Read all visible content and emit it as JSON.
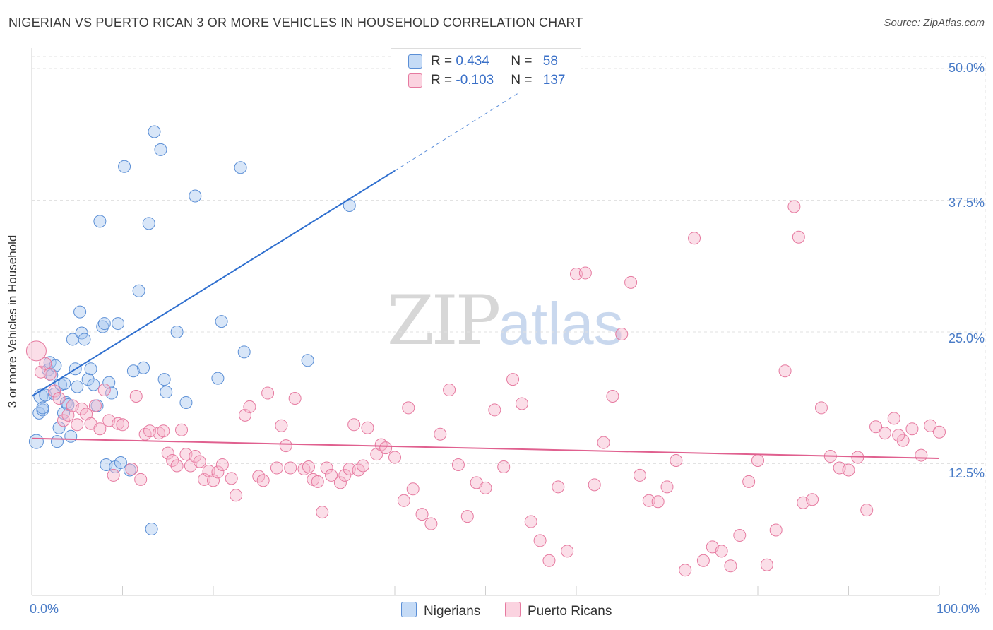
{
  "title": "NIGERIAN VS PUERTO RICAN 3 OR MORE VEHICLES IN HOUSEHOLD CORRELATION CHART",
  "source": "Source: ZipAtlas.com",
  "watermark": {
    "zip": "ZIP",
    "atlas": "atlas"
  },
  "legend": {
    "rows": [
      {
        "r_label": "R = ",
        "r_value": "0.434",
        "n_label": "N = ",
        "n_value": "58",
        "color": "#a9c8ef"
      },
      {
        "r_label": "R = ",
        "r_value": "-0.103",
        "n_label": "N = ",
        "n_value": "137",
        "color": "#f7b6cc"
      }
    ]
  },
  "bottom_legend": [
    {
      "label": "Nigerians",
      "color": "#a9c8ef"
    },
    {
      "label": "Puerto Ricans",
      "color": "#f7b6cc"
    }
  ],
  "chart_data": {
    "type": "scatter",
    "title": "NIGERIAN VS PUERTO RICAN 3 OR MORE VEHICLES IN HOUSEHOLD CORRELATION CHART",
    "xlabel": "",
    "ylabel": "3 or more Vehicles in Household",
    "xlim": [
      0,
      100
    ],
    "ylim": [
      0,
      50.0
    ],
    "x_tick_labels": [
      "0.0%",
      "100.0%"
    ],
    "y_ticks": [
      12.5,
      25.0,
      37.5,
      50.0
    ],
    "y_tick_labels": [
      "12.5%",
      "25.0%",
      "37.5%",
      "50.0%"
    ],
    "grid": true,
    "series": [
      {
        "name": "Nigerians",
        "color": "#a9c8ef",
        "edge": "#5b8fd6",
        "trend": {
          "x0": 0,
          "y0": 18.9,
          "x1": 40,
          "y1": 40.3,
          "dash_to_x": 57,
          "dash_to_y": 49.5,
          "color": "#2f6fcf"
        },
        "points": [
          [
            0.5,
            14.6
          ],
          [
            0.8,
            17.3
          ],
          [
            1.0,
            18.9
          ],
          [
            1.2,
            17.6
          ],
          [
            1.5,
            19.0
          ],
          [
            1.8,
            21.4
          ],
          [
            2.0,
            22.1
          ],
          [
            2.2,
            20.9
          ],
          [
            2.5,
            19.1
          ],
          [
            2.8,
            14.6
          ],
          [
            3.0,
            15.9
          ],
          [
            3.2,
            20.0
          ],
          [
            3.5,
            17.3
          ],
          [
            3.8,
            18.3
          ],
          [
            4.0,
            18.1
          ],
          [
            4.3,
            15.1
          ],
          [
            4.5,
            24.3
          ],
          [
            4.8,
            21.5
          ],
          [
            5.0,
            19.8
          ],
          [
            5.3,
            26.9
          ],
          [
            5.5,
            24.9
          ],
          [
            5.8,
            24.3
          ],
          [
            6.2,
            20.5
          ],
          [
            6.5,
            21.5
          ],
          [
            6.8,
            20.0
          ],
          [
            7.2,
            18.0
          ],
          [
            7.5,
            35.5
          ],
          [
            7.8,
            25.5
          ],
          [
            8.0,
            25.8
          ],
          [
            8.2,
            12.4
          ],
          [
            8.5,
            20.2
          ],
          [
            8.8,
            19.2
          ],
          [
            9.2,
            12.2
          ],
          [
            9.5,
            25.8
          ],
          [
            9.8,
            12.6
          ],
          [
            10.2,
            40.7
          ],
          [
            10.8,
            11.9
          ],
          [
            11.2,
            21.3
          ],
          [
            11.8,
            28.9
          ],
          [
            12.3,
            21.6
          ],
          [
            12.9,
            35.3
          ],
          [
            13.2,
            6.3
          ],
          [
            13.5,
            44.0
          ],
          [
            14.2,
            42.3
          ],
          [
            14.6,
            20.5
          ],
          [
            14.8,
            19.3
          ],
          [
            16.0,
            25.0
          ],
          [
            17.0,
            18.3
          ],
          [
            18.0,
            37.9
          ],
          [
            20.5,
            20.6
          ],
          [
            20.9,
            26.0
          ],
          [
            23.0,
            40.6
          ],
          [
            23.4,
            23.1
          ],
          [
            30.4,
            22.3
          ],
          [
            35.0,
            37.0
          ],
          [
            1.2,
            17.8
          ],
          [
            2.6,
            21.8
          ],
          [
            3.6,
            20.1
          ]
        ]
      },
      {
        "name": "Puerto Ricans",
        "color": "#f7b6cc",
        "edge": "#e67aa0",
        "trend": {
          "x0": 0,
          "y0": 14.9,
          "x1": 100,
          "y1": 13.0,
          "color": "#e0608f"
        },
        "points": [
          [
            0.5,
            23.2
          ],
          [
            1.0,
            21.2
          ],
          [
            1.5,
            22.0
          ],
          [
            2.0,
            21.0
          ],
          [
            2.5,
            19.4
          ],
          [
            3.0,
            18.7
          ],
          [
            3.5,
            16.6
          ],
          [
            4.0,
            17.1
          ],
          [
            4.5,
            18.0
          ],
          [
            5.0,
            16.2
          ],
          [
            5.5,
            17.7
          ],
          [
            6.0,
            17.2
          ],
          [
            6.5,
            16.3
          ],
          [
            7.0,
            18.0
          ],
          [
            7.5,
            15.8
          ],
          [
            8.0,
            19.5
          ],
          [
            8.5,
            16.6
          ],
          [
            9.0,
            11.4
          ],
          [
            9.5,
            16.3
          ],
          [
            10.0,
            16.2
          ],
          [
            11.0,
            12.0
          ],
          [
            11.5,
            18.9
          ],
          [
            12.0,
            11.0
          ],
          [
            12.5,
            15.3
          ],
          [
            13.0,
            15.6
          ],
          [
            14.0,
            15.4
          ],
          [
            14.5,
            15.6
          ],
          [
            15.0,
            13.5
          ],
          [
            15.5,
            12.8
          ],
          [
            16.0,
            12.3
          ],
          [
            16.5,
            15.7
          ],
          [
            17.0,
            13.4
          ],
          [
            17.5,
            12.3
          ],
          [
            18.0,
            13.2
          ],
          [
            18.5,
            12.7
          ],
          [
            19.0,
            11.0
          ],
          [
            19.5,
            11.8
          ],
          [
            20.0,
            10.9
          ],
          [
            20.5,
            11.7
          ],
          [
            21.0,
            12.4
          ],
          [
            22.0,
            11.1
          ],
          [
            22.5,
            9.5
          ],
          [
            23.5,
            17.1
          ],
          [
            24.0,
            17.9
          ],
          [
            25.0,
            11.3
          ],
          [
            25.5,
            10.9
          ],
          [
            26.0,
            19.2
          ],
          [
            27.0,
            12.1
          ],
          [
            27.5,
            16.1
          ],
          [
            28.0,
            14.2
          ],
          [
            28.5,
            12.1
          ],
          [
            29.0,
            18.7
          ],
          [
            30.0,
            12.0
          ],
          [
            30.5,
            12.2
          ],
          [
            31.0,
            11.0
          ],
          [
            31.5,
            10.8
          ],
          [
            32.0,
            7.9
          ],
          [
            32.5,
            12.1
          ],
          [
            33.0,
            11.4
          ],
          [
            34.0,
            10.7
          ],
          [
            34.5,
            11.4
          ],
          [
            35.0,
            12.0
          ],
          [
            35.5,
            16.2
          ],
          [
            36.0,
            11.9
          ],
          [
            36.5,
            12.3
          ],
          [
            37.0,
            15.9
          ],
          [
            38.0,
            13.4
          ],
          [
            38.5,
            14.3
          ],
          [
            39.0,
            14.0
          ],
          [
            40.0,
            13.1
          ],
          [
            41.0,
            9.0
          ],
          [
            41.5,
            17.8
          ],
          [
            42.0,
            10.1
          ],
          [
            43.0,
            7.7
          ],
          [
            44.0,
            6.8
          ],
          [
            45.0,
            15.3
          ],
          [
            46.0,
            19.5
          ],
          [
            47.0,
            12.4
          ],
          [
            48.0,
            7.5
          ],
          [
            49.0,
            10.7
          ],
          [
            50.0,
            10.2
          ],
          [
            51.0,
            17.6
          ],
          [
            52.0,
            12.2
          ],
          [
            53.0,
            20.5
          ],
          [
            54.0,
            18.2
          ],
          [
            55.0,
            7.0
          ],
          [
            56.0,
            5.2
          ],
          [
            57.0,
            3.3
          ],
          [
            58.0,
            10.3
          ],
          [
            59.0,
            4.2
          ],
          [
            60.0,
            30.5
          ],
          [
            61.0,
            30.6
          ],
          [
            62.0,
            10.5
          ],
          [
            63.0,
            14.5
          ],
          [
            64.0,
            18.9
          ],
          [
            65.0,
            24.8
          ],
          [
            66.0,
            29.7
          ],
          [
            67.0,
            11.4
          ],
          [
            68.0,
            9.0
          ],
          [
            69.0,
            8.9
          ],
          [
            70.0,
            10.3
          ],
          [
            71.0,
            12.8
          ],
          [
            72.0,
            2.4
          ],
          [
            73.0,
            33.9
          ],
          [
            74.0,
            3.3
          ],
          [
            75.0,
            4.6
          ],
          [
            76.0,
            4.2
          ],
          [
            77.0,
            2.8
          ],
          [
            78.0,
            5.7
          ],
          [
            79.0,
            10.8
          ],
          [
            80.0,
            12.8
          ],
          [
            81.0,
            2.9
          ],
          [
            82.0,
            6.2
          ],
          [
            83.0,
            21.3
          ],
          [
            84.0,
            36.9
          ],
          [
            84.5,
            34.0
          ],
          [
            85.0,
            8.8
          ],
          [
            86.0,
            9.1
          ],
          [
            87.0,
            17.8
          ],
          [
            88.0,
            13.2
          ],
          [
            89.0,
            12.1
          ],
          [
            90.0,
            11.9
          ],
          [
            91.0,
            13.1
          ],
          [
            92.0,
            8.1
          ],
          [
            93.0,
            16.0
          ],
          [
            94.0,
            15.4
          ],
          [
            95.0,
            16.8
          ],
          [
            96.0,
            14.7
          ],
          [
            97.0,
            15.8
          ],
          [
            98.0,
            13.3
          ],
          [
            99.0,
            16.1
          ],
          [
            100.0,
            15.5
          ],
          [
            95.5,
            15.2
          ]
        ]
      }
    ]
  }
}
